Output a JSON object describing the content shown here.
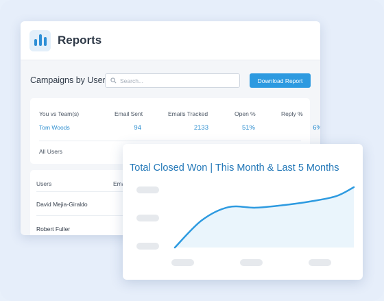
{
  "reports": {
    "title": "Reports",
    "campaigns_label": "Campaigns by User",
    "search_placeholder": "Search...",
    "download_label": "Download Report"
  },
  "summary": {
    "headers": [
      "You vs Team(s)",
      "Email Sent",
      "Emails Tracked",
      "Open %",
      "Reply %"
    ],
    "row": {
      "name": "Tom Woods",
      "email_sent": "94",
      "emails_tracked": "2133",
      "open": "51%",
      "reply": "6%"
    },
    "all_users": "All Users"
  },
  "users_table": {
    "headers": [
      "Users",
      "Emai"
    ],
    "rows": [
      "David Mejia-Giraldo",
      "Robert Fuller"
    ]
  },
  "chart_data": {
    "type": "area",
    "title": "Total Closed Won | This Month & Last 5 Months",
    "xlabel": "",
    "ylabel": "",
    "grid": false,
    "series": [
      {
        "x": [
          0,
          0.15,
          0.3,
          0.45,
          0.6,
          0.75,
          0.9,
          1.0
        ],
        "values": [
          0,
          0.45,
          0.67,
          0.66,
          0.7,
          0.76,
          0.85,
          1.0
        ]
      }
    ],
    "color": "#2d9ae0",
    "fill": "#eaf5fc"
  }
}
